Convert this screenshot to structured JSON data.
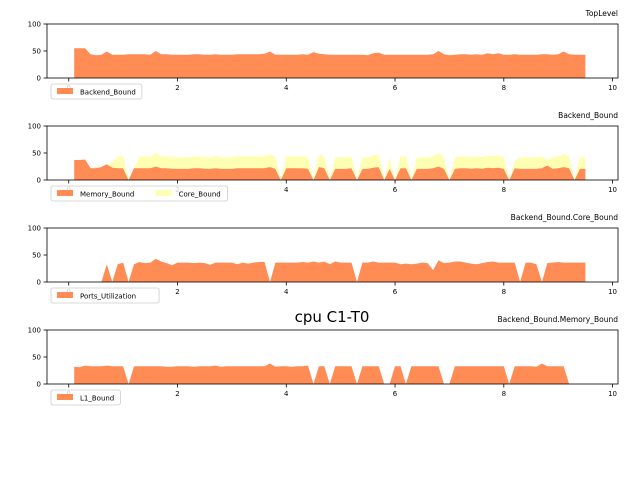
{
  "figure_title": "cpu C1-T0",
  "colors": {
    "orange": "#ff8c55",
    "yellow": "#ffffb3",
    "axis": "#000000",
    "legend_border": "#cccccc"
  },
  "chart_data": [
    {
      "type": "area",
      "title": "TopLevel",
      "xlim": [
        -0.4,
        10.1
      ],
      "ylim": [
        0,
        100
      ],
      "xticks": [
        0,
        2,
        4,
        6,
        8,
        10
      ],
      "yticks": [
        0,
        50,
        100
      ],
      "legend": "upper-left",
      "x": [
        0.1,
        0.2,
        0.3,
        0.4,
        0.5,
        0.6,
        0.7,
        0.8,
        0.9,
        1.0,
        1.1,
        1.2,
        1.3,
        1.4,
        1.5,
        1.6,
        1.7,
        1.8,
        1.9,
        2.0,
        2.1,
        2.2,
        2.3,
        2.4,
        2.5,
        2.6,
        2.7,
        2.8,
        2.9,
        3.0,
        3.1,
        3.2,
        3.3,
        3.4,
        3.5,
        3.6,
        3.7,
        3.8,
        3.9,
        4.0,
        4.1,
        4.2,
        4.3,
        4.4,
        4.5,
        4.6,
        4.7,
        4.8,
        4.9,
        5.0,
        5.1,
        5.2,
        5.3,
        5.4,
        5.5,
        5.6,
        5.7,
        5.8,
        5.9,
        6.0,
        6.1,
        6.2,
        6.3,
        6.4,
        6.5,
        6.6,
        6.7,
        6.8,
        6.9,
        7.0,
        7.1,
        7.2,
        7.3,
        7.4,
        7.5,
        7.6,
        7.7,
        7.8,
        7.9,
        8.0,
        8.1,
        8.2,
        8.3,
        8.4,
        8.5,
        8.6,
        8.7,
        8.8,
        8.9,
        9.0,
        9.1,
        9.2,
        9.3,
        9.4,
        9.5
      ],
      "series": [
        {
          "name": "Backend_Bound",
          "color": "#ff8c55",
          "values": [
            55,
            55,
            55,
            44,
            42,
            43,
            49,
            43,
            43,
            43,
            44,
            44,
            44,
            44,
            43,
            50,
            44,
            44,
            43,
            43,
            43,
            43,
            44,
            44,
            43,
            43,
            44,
            43,
            43,
            43,
            44,
            44,
            44,
            44,
            44,
            45,
            49,
            43,
            43,
            43,
            43,
            43,
            44,
            43,
            48,
            45,
            44,
            43,
            43,
            43,
            43,
            43,
            43,
            43,
            42,
            46,
            47,
            43,
            43,
            43,
            43,
            43,
            43,
            43,
            43,
            43,
            44,
            50,
            44,
            42,
            43,
            44,
            44,
            43,
            44,
            43,
            46,
            44,
            46,
            43,
            43,
            44,
            43,
            43,
            43,
            43,
            44,
            44,
            43,
            44,
            49,
            44,
            43,
            43,
            43
          ]
        }
      ]
    },
    {
      "type": "area",
      "title": "Backend_Bound",
      "xlim": [
        -0.4,
        10.1
      ],
      "ylim": [
        0,
        100
      ],
      "xticks": [
        0,
        2,
        4,
        6,
        8,
        10
      ],
      "yticks": [
        0,
        50,
        100
      ],
      "stacked": true,
      "legend": "upper-left",
      "x": [
        0.1,
        0.2,
        0.3,
        0.4,
        0.5,
        0.6,
        0.7,
        0.8,
        0.9,
        1.0,
        1.1,
        1.2,
        1.3,
        1.4,
        1.5,
        1.6,
        1.7,
        1.8,
        1.9,
        2.0,
        2.1,
        2.2,
        2.3,
        2.4,
        2.5,
        2.6,
        2.7,
        2.8,
        2.9,
        3.0,
        3.1,
        3.2,
        3.3,
        3.4,
        3.5,
        3.6,
        3.7,
        3.8,
        3.9,
        4.0,
        4.1,
        4.2,
        4.3,
        4.4,
        4.5,
        4.6,
        4.7,
        4.8,
        4.9,
        5.0,
        5.1,
        5.2,
        5.3,
        5.4,
        5.5,
        5.6,
        5.7,
        5.8,
        5.9,
        6.0,
        6.1,
        6.2,
        6.3,
        6.4,
        6.5,
        6.6,
        6.7,
        6.8,
        6.9,
        7.0,
        7.1,
        7.2,
        7.3,
        7.4,
        7.5,
        7.6,
        7.7,
        7.8,
        7.9,
        8.0,
        8.1,
        8.2,
        8.3,
        8.4,
        8.5,
        8.6,
        8.7,
        8.8,
        8.9,
        9.0,
        9.1,
        9.2,
        9.3,
        9.4,
        9.5
      ],
      "series": [
        {
          "name": "Memory_Bound",
          "color": "#ff8c55",
          "values": [
            37,
            37,
            38,
            22,
            22,
            24,
            29,
            23,
            22,
            22,
            0,
            22,
            22,
            22,
            22,
            25,
            22,
            22,
            21,
            21,
            21,
            21,
            22,
            22,
            21,
            21,
            22,
            21,
            21,
            21,
            22,
            22,
            22,
            22,
            22,
            22,
            24,
            21,
            0,
            22,
            22,
            22,
            22,
            21,
            0,
            24,
            22,
            0,
            21,
            21,
            21,
            22,
            0,
            21,
            21,
            23,
            24,
            0,
            21,
            0,
            22,
            22,
            0,
            21,
            21,
            21,
            22,
            25,
            21,
            0,
            21,
            22,
            22,
            21,
            22,
            21,
            23,
            22,
            23,
            21,
            0,
            22,
            21,
            21,
            21,
            21,
            22,
            27,
            21,
            22,
            24,
            22,
            0,
            21,
            21
          ]
        },
        {
          "name": "Core_Bound",
          "color": "#ffffb3",
          "values": [
            0,
            0,
            0,
            0,
            2,
            0,
            0,
            10,
            22,
            22,
            0,
            0,
            22,
            22,
            22,
            25,
            22,
            22,
            21,
            21,
            21,
            21,
            22,
            22,
            21,
            21,
            22,
            21,
            21,
            21,
            22,
            22,
            22,
            22,
            22,
            22,
            24,
            21,
            0,
            22,
            22,
            22,
            22,
            21,
            0,
            24,
            22,
            0,
            21,
            21,
            21,
            22,
            0,
            21,
            21,
            23,
            24,
            0,
            21,
            0,
            22,
            22,
            0,
            21,
            21,
            21,
            22,
            25,
            21,
            0,
            21,
            22,
            22,
            21,
            22,
            21,
            23,
            22,
            23,
            21,
            0,
            13,
            21,
            21,
            21,
            21,
            22,
            10,
            21,
            22,
            24,
            22,
            0,
            21,
            21
          ]
        }
      ]
    },
    {
      "type": "area",
      "title": "Backend_Bound.Core_Bound",
      "xlim": [
        -0.4,
        10.1
      ],
      "ylim": [
        0,
        100
      ],
      "xticks": [
        0,
        2,
        4,
        6,
        8,
        10
      ],
      "yticks": [
        0,
        50,
        100
      ],
      "legend": "upper-left",
      "x": [
        0.1,
        0.2,
        0.3,
        0.4,
        0.5,
        0.6,
        0.7,
        0.8,
        0.9,
        1.0,
        1.1,
        1.2,
        1.3,
        1.4,
        1.5,
        1.6,
        1.7,
        1.8,
        1.9,
        2.0,
        2.1,
        2.2,
        2.3,
        2.4,
        2.5,
        2.6,
        2.7,
        2.8,
        2.9,
        3.0,
        3.1,
        3.2,
        3.3,
        3.4,
        3.5,
        3.6,
        3.7,
        3.8,
        3.9,
        4.0,
        4.1,
        4.2,
        4.3,
        4.4,
        4.5,
        4.6,
        4.7,
        4.8,
        4.9,
        5.0,
        5.1,
        5.2,
        5.3,
        5.4,
        5.5,
        5.6,
        5.7,
        5.8,
        5.9,
        6.0,
        6.1,
        6.2,
        6.3,
        6.4,
        6.5,
        6.6,
        6.7,
        6.8,
        6.9,
        7.0,
        7.1,
        7.2,
        7.3,
        7.4,
        7.5,
        7.6,
        7.7,
        7.8,
        7.9,
        8.0,
        8.1,
        8.2,
        8.3,
        8.4,
        8.5,
        8.6,
        8.7,
        8.8,
        8.9,
        9.0,
        9.1,
        9.2,
        9.3,
        9.4,
        9.5
      ],
      "series": [
        {
          "name": "Ports_Utilization",
          "color": "#ff8c55",
          "values": [
            0,
            0,
            0,
            0,
            0,
            0,
            33,
            0,
            33,
            36,
            0,
            33,
            37,
            35,
            36,
            43,
            38,
            35,
            31,
            36,
            36,
            36,
            35,
            36,
            35,
            32,
            36,
            36,
            36,
            36,
            33,
            36,
            34,
            36,
            37,
            37,
            0,
            36,
            36,
            36,
            36,
            36,
            37,
            36,
            38,
            36,
            38,
            33,
            38,
            36,
            36,
            36,
            0,
            36,
            36,
            38,
            36,
            36,
            36,
            36,
            33,
            34,
            33,
            34,
            36,
            35,
            22,
            40,
            35,
            36,
            38,
            38,
            36,
            34,
            33,
            35,
            37,
            38,
            36,
            36,
            36,
            36,
            0,
            36,
            36,
            33,
            0,
            35,
            36,
            37,
            36,
            36,
            36,
            36,
            36
          ]
        }
      ]
    },
    {
      "type": "area",
      "title": "Backend_Bound.Memory_Bound",
      "xlim": [
        -0.4,
        10.1
      ],
      "ylim": [
        0,
        100
      ],
      "xticks": [
        0,
        2,
        4,
        6,
        8,
        10
      ],
      "yticks": [
        0,
        50,
        100
      ],
      "legend": "upper-left",
      "x": [
        0.1,
        0.2,
        0.3,
        0.4,
        0.5,
        0.6,
        0.7,
        0.8,
        0.9,
        1.0,
        1.1,
        1.2,
        1.3,
        1.4,
        1.5,
        1.6,
        1.7,
        1.8,
        1.9,
        2.0,
        2.1,
        2.2,
        2.3,
        2.4,
        2.5,
        2.6,
        2.7,
        2.8,
        2.9,
        3.0,
        3.1,
        3.2,
        3.3,
        3.4,
        3.5,
        3.6,
        3.7,
        3.8,
        3.9,
        4.0,
        4.1,
        4.2,
        4.3,
        4.4,
        4.5,
        4.6,
        4.7,
        4.8,
        4.9,
        5.0,
        5.1,
        5.2,
        5.3,
        5.4,
        5.5,
        5.6,
        5.7,
        5.8,
        5.9,
        6.0,
        6.1,
        6.2,
        6.3,
        6.4,
        6.5,
        6.6,
        6.7,
        6.8,
        6.9,
        7.0,
        7.1,
        7.2,
        7.3,
        7.4,
        7.5,
        7.6,
        7.7,
        7.8,
        7.9,
        8.0,
        8.1,
        8.2,
        8.3,
        8.4,
        8.5,
        8.6,
        8.7,
        8.8,
        8.9,
        9.0,
        9.1,
        9.2,
        9.3,
        9.4,
        9.5
      ],
      "series": [
        {
          "name": "L1_Bound",
          "color": "#ff8c55",
          "values": [
            32,
            31,
            34,
            33,
            33,
            33,
            34,
            33,
            33,
            33,
            0,
            33,
            33,
            33,
            33,
            33,
            33,
            32,
            32,
            33,
            33,
            33,
            32,
            33,
            33,
            33,
            34,
            32,
            33,
            33,
            33,
            33,
            33,
            33,
            33,
            33,
            38,
            32,
            33,
            33,
            32,
            33,
            33,
            34,
            0,
            33,
            33,
            0,
            33,
            33,
            33,
            33,
            0,
            33,
            33,
            33,
            33,
            0,
            0,
            33,
            33,
            0,
            33,
            33,
            33,
            33,
            33,
            33,
            0,
            0,
            33,
            33,
            33,
            33,
            33,
            33,
            33,
            33,
            33,
            33,
            0,
            33,
            33,
            33,
            33,
            32,
            38,
            33,
            33,
            33,
            33,
            0,
            0,
            0,
            0
          ]
        }
      ]
    }
  ]
}
